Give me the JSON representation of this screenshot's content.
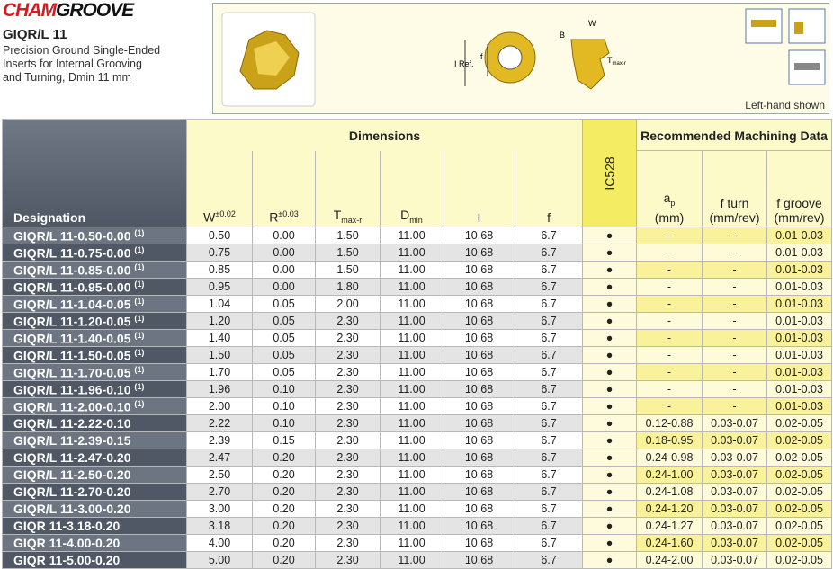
{
  "header": {
    "logo": [
      "CHAM",
      "GROOVE"
    ],
    "title": "GIQR/L 11",
    "description": [
      "Precision Ground Single-Ended",
      "Inserts for Internal Grooving",
      "and Turning, Dmin 11 mm"
    ]
  },
  "diagram": {
    "labels": {
      "w": "W",
      "b": "B",
      "iref": "I Ref.",
      "f": "f",
      "t": "T",
      "tsub": "max-r"
    },
    "caption": "Left-hand shown"
  },
  "table": {
    "designation_header": "Designation",
    "dimensions_header": "Dimensions",
    "grade_header": "IC528",
    "machining_header": "Recommended  Machining Data",
    "dimension_columns": [
      {
        "main": "W",
        "sup": "±0.02"
      },
      {
        "main": "R",
        "sup": "±0.03"
      },
      {
        "main": "T",
        "sub": "max-r"
      },
      {
        "main": "D",
        "sub": "min"
      },
      {
        "main": "I"
      },
      {
        "main": "f"
      }
    ],
    "machining_columns": [
      {
        "main": "a",
        "sub": "p",
        "unit": "(mm)"
      },
      {
        "main": "f turn",
        "unit": "(mm/rev)"
      },
      {
        "main": "f groove",
        "unit": "(mm/rev)"
      }
    ],
    "rows": [
      {
        "designation": "GIQR/L 11-0.50-0.00",
        "note": "(1)",
        "dims": [
          "0.50",
          "0.00",
          "1.50",
          "11.00",
          "10.68",
          "6.7"
        ],
        "grade": "●",
        "machining": [
          "-",
          "-",
          "0.01-0.03"
        ]
      },
      {
        "designation": "GIQR/L 11-0.75-0.00",
        "note": "(1)",
        "dims": [
          "0.75",
          "0.00",
          "1.50",
          "11.00",
          "10.68",
          "6.7"
        ],
        "grade": "●",
        "machining": [
          "-",
          "-",
          "0.01-0.03"
        ]
      },
      {
        "designation": "GIQR/L 11-0.85-0.00",
        "note": "(1)",
        "dims": [
          "0.85",
          "0.00",
          "1.50",
          "11.00",
          "10.68",
          "6.7"
        ],
        "grade": "●",
        "machining": [
          "-",
          "-",
          "0.01-0.03"
        ]
      },
      {
        "designation": "GIQR/L 11-0.95-0.00",
        "note": "(1)",
        "dims": [
          "0.95",
          "0.00",
          "1.80",
          "11.00",
          "10.68",
          "6.7"
        ],
        "grade": "●",
        "machining": [
          "-",
          "-",
          "0.01-0.03"
        ]
      },
      {
        "designation": "GIQR/L 11-1.04-0.05",
        "note": "(1)",
        "dims": [
          "1.04",
          "0.05",
          "2.00",
          "11.00",
          "10.68",
          "6.7"
        ],
        "grade": "●",
        "machining": [
          "-",
          "-",
          "0.01-0.03"
        ]
      },
      {
        "designation": "GIQR/L 11-1.20-0.05",
        "note": "(1)",
        "dims": [
          "1.20",
          "0.05",
          "2.30",
          "11.00",
          "10.68",
          "6.7"
        ],
        "grade": "●",
        "machining": [
          "-",
          "-",
          "0.01-0.03"
        ]
      },
      {
        "designation": "GIQR/L 11-1.40-0.05",
        "note": "(1)",
        "dims": [
          "1.40",
          "0.05",
          "2.30",
          "11.00",
          "10.68",
          "6.7"
        ],
        "grade": "●",
        "machining": [
          "-",
          "-",
          "0.01-0.03"
        ]
      },
      {
        "designation": "GIQR/L 11-1.50-0.05",
        "note": "(1)",
        "dims": [
          "1.50",
          "0.05",
          "2.30",
          "11.00",
          "10.68",
          "6.7"
        ],
        "grade": "●",
        "machining": [
          "-",
          "-",
          "0.01-0.03"
        ]
      },
      {
        "designation": "GIQR/L 11-1.70-0.05",
        "note": "(1)",
        "dims": [
          "1.70",
          "0.05",
          "2.30",
          "11.00",
          "10.68",
          "6.7"
        ],
        "grade": "●",
        "machining": [
          "-",
          "-",
          "0.01-0.03"
        ]
      },
      {
        "designation": "GIQR/L 11-1.96-0.10",
        "note": "(1)",
        "dims": [
          "1.96",
          "0.10",
          "2.30",
          "11.00",
          "10.68",
          "6.7"
        ],
        "grade": "●",
        "machining": [
          "-",
          "-",
          "0.01-0.03"
        ]
      },
      {
        "designation": "GIQR/L 11-2.00-0.10",
        "note": "(1)",
        "dims": [
          "2.00",
          "0.10",
          "2.30",
          "11.00",
          "10.68",
          "6.7"
        ],
        "grade": "●",
        "machining": [
          "-",
          "-",
          "0.01-0.03"
        ]
      },
      {
        "designation": "GIQR/L 11-2.22-0.10",
        "dims": [
          "2.22",
          "0.10",
          "2.30",
          "11.00",
          "10.68",
          "6.7"
        ],
        "grade": "●",
        "machining": [
          "0.12-0.88",
          "0.03-0.07",
          "0.02-0.05"
        ]
      },
      {
        "designation": "GIQR/L 11-2.39-0.15",
        "dims": [
          "2.39",
          "0.15",
          "2.30",
          "11.00",
          "10.68",
          "6.7"
        ],
        "grade": "●",
        "machining": [
          "0.18-0.95",
          "0.03-0.07",
          "0.02-0.05"
        ]
      },
      {
        "designation": "GIQR/L 11-2.47-0.20",
        "dims": [
          "2.47",
          "0.20",
          "2.30",
          "11.00",
          "10.68",
          "6.7"
        ],
        "grade": "●",
        "machining": [
          "0.24-0.98",
          "0.03-0.07",
          "0.02-0.05"
        ]
      },
      {
        "designation": "GIQR/L 11-2.50-0.20",
        "dims": [
          "2.50",
          "0.20",
          "2.30",
          "11.00",
          "10.68",
          "6.7"
        ],
        "grade": "●",
        "machining": [
          "0.24-1.00",
          "0.03-0.07",
          "0.02-0.05"
        ]
      },
      {
        "designation": "GIQR/L 11-2.70-0.20",
        "dims": [
          "2.70",
          "0.20",
          "2.30",
          "11.00",
          "10.68",
          "6.7"
        ],
        "grade": "●",
        "machining": [
          "0.24-1.08",
          "0.03-0.07",
          "0.02-0.05"
        ]
      },
      {
        "designation": "GIQR/L 11-3.00-0.20",
        "dims": [
          "3.00",
          "0.20",
          "2.30",
          "11.00",
          "10.68",
          "6.7"
        ],
        "grade": "●",
        "machining": [
          "0.24-1.20",
          "0.03-0.07",
          "0.02-0.05"
        ]
      },
      {
        "designation": "GIQR 11-3.18-0.20",
        "dims": [
          "3.18",
          "0.20",
          "2.30",
          "11.00",
          "10.68",
          "6.7"
        ],
        "grade": "●",
        "machining": [
          "0.24-1.27",
          "0.03-0.07",
          "0.02-0.05"
        ]
      },
      {
        "designation": "GIQR 11-4.00-0.20",
        "dims": [
          "4.00",
          "0.20",
          "2.30",
          "11.00",
          "10.68",
          "6.7"
        ],
        "grade": "●",
        "machining": [
          "0.24-1.60",
          "0.03-0.07",
          "0.02-0.05"
        ]
      },
      {
        "designation": "GIQR 11-5.00-0.20",
        "dims": [
          "5.00",
          "0.20",
          "2.30",
          "11.00",
          "10.68",
          "6.7"
        ],
        "grade": "●",
        "machining": [
          "0.24-2.00",
          "0.03-0.07",
          "0.02-0.05"
        ]
      }
    ]
  }
}
